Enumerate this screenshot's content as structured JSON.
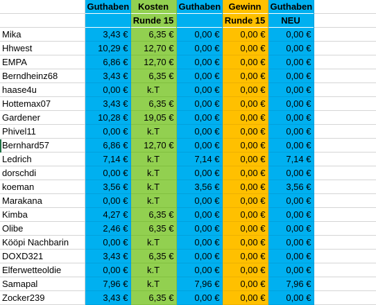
{
  "colors": {
    "blue": "#00b0f0",
    "green": "#92d050",
    "orange": "#ffc000"
  },
  "header_row1": [
    "",
    "Guthaben",
    "Kosten",
    "Guthaben",
    "Gewinn",
    "Guthaben",
    ""
  ],
  "header_row2": [
    "",
    "",
    "Runde 15",
    "",
    "Runde 15",
    "NEU",
    ""
  ],
  "rows": [
    {
      "name": "Mika",
      "guthaben": "3,43 €",
      "kosten": "6,35 €",
      "guthaben2": "0,00 €",
      "gewinn": "0,00 €",
      "neu": "0,00 €"
    },
    {
      "name": "Hhwest",
      "guthaben": "10,29 €",
      "kosten": "12,70 €",
      "guthaben2": "0,00 €",
      "gewinn": "0,00 €",
      "neu": "0,00 €"
    },
    {
      "name": "EMPA",
      "guthaben": "6,86 €",
      "kosten": "12,70 €",
      "guthaben2": "0,00 €",
      "gewinn": "0,00 €",
      "neu": "0,00 €"
    },
    {
      "name": "Berndheinz68",
      "guthaben": "3,43 €",
      "kosten": "6,35 €",
      "guthaben2": "0,00 €",
      "gewinn": "0,00 €",
      "neu": "0,00 €"
    },
    {
      "name": "haase4u",
      "guthaben": "0,00 €",
      "kosten": "k.T",
      "guthaben2": "0,00 €",
      "gewinn": "0,00 €",
      "neu": "0,00 €"
    },
    {
      "name": "Hottemax07",
      "guthaben": "3,43 €",
      "kosten": "6,35 €",
      "guthaben2": "0,00 €",
      "gewinn": "0,00 €",
      "neu": "0,00 €"
    },
    {
      "name": "Gardener",
      "guthaben": "10,28 €",
      "kosten": "19,05 €",
      "guthaben2": "0,00 €",
      "gewinn": "0,00 €",
      "neu": "0,00 €"
    },
    {
      "name": "Phivel11",
      "guthaben": "0,00 €",
      "kosten": "k.T",
      "guthaben2": "0,00 €",
      "gewinn": "0,00 €",
      "neu": "0,00 €"
    },
    {
      "name": "Bernhard57",
      "guthaben": "6,86 €",
      "kosten": "12,70 €",
      "guthaben2": "0,00 €",
      "gewinn": "0,00 €",
      "neu": "0,00 €"
    },
    {
      "name": "Ledrich",
      "guthaben": "7,14 €",
      "kosten": "k.T",
      "guthaben2": "7,14 €",
      "gewinn": "0,00 €",
      "neu": "7,14 €"
    },
    {
      "name": "dorschdi",
      "guthaben": "0,00 €",
      "kosten": "k.T",
      "guthaben2": "0,00 €",
      "gewinn": "0,00 €",
      "neu": "0,00 €"
    },
    {
      "name": "koeman",
      "guthaben": "3,56 €",
      "kosten": "k.T",
      "guthaben2": "3,56 €",
      "gewinn": "0,00 €",
      "neu": "3,56 €"
    },
    {
      "name": "Marakana",
      "guthaben": "0,00 €",
      "kosten": "k.T",
      "guthaben2": "0,00 €",
      "gewinn": "0,00 €",
      "neu": "0,00 €"
    },
    {
      "name": "Kimba",
      "guthaben": "4,27 €",
      "kosten": "6,35 €",
      "guthaben2": "0,00 €",
      "gewinn": "0,00 €",
      "neu": "0,00 €"
    },
    {
      "name": "Olibe",
      "guthaben": "2,46 €",
      "kosten": "6,35 €",
      "guthaben2": "0,00 €",
      "gewinn": "0,00 €",
      "neu": "0,00 €"
    },
    {
      "name": "Kööpi Nachbarin",
      "guthaben": "0,00 €",
      "kosten": "k.T",
      "guthaben2": "0,00 €",
      "gewinn": "0,00 €",
      "neu": "0,00 €"
    },
    {
      "name": "DOXD321",
      "guthaben": "3,43 €",
      "kosten": "6,35 €",
      "guthaben2": "0,00 €",
      "gewinn": "0,00 €",
      "neu": "0,00 €"
    },
    {
      "name": "Elferwetteoldie",
      "guthaben": "0,00 €",
      "kosten": "k.T",
      "guthaben2": "0,00 €",
      "gewinn": "0,00 €",
      "neu": "0,00 €"
    },
    {
      "name": "Samapal",
      "guthaben": "7,96 €",
      "kosten": "k.T",
      "guthaben2": "7,96 €",
      "gewinn": "0,00 €",
      "neu": "7,96 €"
    },
    {
      "name": "Zocker239",
      "guthaben": "3,43 €",
      "kosten": "6,35 €",
      "guthaben2": "0,00 €",
      "gewinn": "0,00 €",
      "neu": "0,00 €"
    }
  ]
}
